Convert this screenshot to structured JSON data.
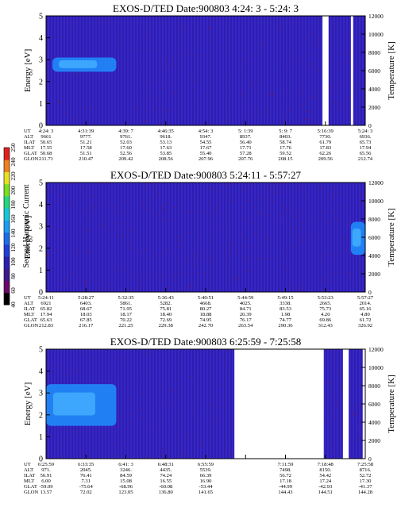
{
  "colors": {
    "background": "#3322bb",
    "stripe_a": "#3a2ad0",
    "stripe_b": "#2a1aa6",
    "noise": "#7a1a48",
    "bright_band": "#1e90ff",
    "gap": "#ffffff"
  },
  "colorbar": {
    "label": "Second Harmonic Current",
    "ticks": [
      "40",
      "60",
      "80",
      "100",
      "120",
      "140",
      "160",
      "180",
      "200",
      "220",
      "240",
      "250"
    ],
    "colors": [
      "#000000",
      "#6a0a6a",
      "#3c1a8c",
      "#2a1fb0",
      "#1f3fd8",
      "#1e6ee8",
      "#1e9ef0",
      "#14c8d8",
      "#22d880",
      "#7ae020",
      "#e8e020",
      "#f08020",
      "#e02020"
    ]
  },
  "chart_data": [
    {
      "type": "heatmap",
      "title": "EXOS-D/TED   Date:900803  4:24: 3 - 5:24: 3",
      "ylabel": "Energy [eV]",
      "ylabel_right": "Temperature [K]",
      "ylim": [
        0,
        5
      ],
      "yticks": [
        "0",
        "1",
        "2",
        "3",
        "4",
        "5"
      ],
      "y2lim": [
        0,
        12000
      ],
      "y2ticks": [
        "0",
        "2000",
        "4000",
        "6000",
        "8000",
        "10000",
        "12000"
      ],
      "x_labels": [
        "4:24: 3",
        "4:31:39",
        "4:39: 7",
        "4:46:35",
        "4:54: 3",
        "5: 1:39",
        "5: 9: 7",
        "5:16:39",
        "5:24: 3"
      ],
      "row_names": [
        "UT",
        "ALT",
        "ILAT",
        "MLT",
        "GLAT",
        "GLON"
      ],
      "rows": [
        [
          "",
          "9661",
          "9777.",
          "9761.",
          "9618.",
          "9347.",
          "8937.",
          "8403.",
          "7730.",
          "6936."
        ],
        [
          "",
          "50.65",
          "51.21",
          "52.03",
          "53.13",
          "54.55",
          "56.40",
          "58.74",
          "61.79",
          "65.73"
        ],
        [
          "",
          "17.55",
          "17.58",
          "17.60",
          "17.63",
          "17.67",
          "17.71",
          "17.76",
          "17.83",
          "17.94"
        ],
        [
          "",
          "50.68",
          "51.51",
          "52.56",
          "53.85",
          "55.40",
          "57.28",
          "59.52",
          "62.26",
          "65.56"
        ],
        [
          "",
          "211.71",
          "210.47",
          "209.42",
          "208.56",
          "207.96",
          "207.76",
          "208.15",
          "209.56",
          "212.74"
        ]
      ],
      "gaps": [
        [
          0.866,
          0.885
        ],
        [
          0.955,
          0.962
        ]
      ],
      "bright_band": {
        "t_start": 0.02,
        "t_end": 0.22,
        "e_low": 2.45,
        "e_high": 3.1
      }
    },
    {
      "type": "heatmap",
      "title": "EXOS-D/TED   Date:900803  5:24:11 - 5:57:27",
      "ylabel": "Energy [eV]",
      "ylabel_right": "Temperature [K]",
      "ylim": [
        0,
        5
      ],
      "yticks": [
        "0",
        "1",
        "2",
        "3",
        "4",
        "5"
      ],
      "y2lim": [
        0,
        12000
      ],
      "y2ticks": [
        "0",
        "2000",
        "4000",
        "6000",
        "8000",
        "10000",
        "12000"
      ],
      "x_labels": [
        "5:24:11",
        "5:28:27",
        "5:32:35",
        "5:36:43",
        "5:40:51",
        "5:44:59",
        "5:49:15",
        "5:53:23",
        "5:57:27"
      ],
      "rows": [
        [
          "",
          "6921",
          "6403.",
          "5861.",
          "5282.",
          "4668.",
          "4025.",
          "3338.",
          "2665.",
          "2014."
        ],
        [
          "",
          "65.82",
          "68.67",
          "71.95",
          "75.81",
          "80.27",
          "84.71",
          "83.53",
          "75.73",
          "65.16"
        ],
        [
          "",
          "17.94",
          "18.03",
          "18.17",
          "18.40",
          "18.88",
          "20.39",
          "1.98",
          "4.20",
          "4.80"
        ],
        [
          "",
          "65.63",
          "67.85",
          "70.22",
          "72.69",
          "74.95",
          "76.17",
          "74.77",
          "69.86",
          "61.72"
        ],
        [
          "",
          "212.83",
          "216.17",
          "221.25",
          "229.38",
          "242.70",
          "263.54",
          "290.36",
          "312.43",
          "326.92"
        ]
      ],
      "gaps": [],
      "bright_band": {
        "t_start": 0.955,
        "t_end": 1.0,
        "e_low": 1.7,
        "e_high": 3.2
      }
    },
    {
      "type": "heatmap",
      "title": "EXOS-D/TED   Date:900803  6:25:59 - 7:25:58",
      "ylabel": "Energy [eV]",
      "ylabel_right": "Temperature [K]",
      "ylim": [
        0,
        5
      ],
      "yticks": [
        "0",
        "1",
        "2",
        "3",
        "4",
        "5"
      ],
      "y2lim": [
        0,
        12000
      ],
      "y2ticks": [
        "0",
        "2000",
        "4000",
        "6000",
        "8000",
        "10000",
        "12000"
      ],
      "x_labels": [
        "6:25:59",
        "6:33:35",
        "6:41: 3",
        "6:48:31",
        "6:55:59",
        "",
        "7:11:59",
        "7:18:48",
        "7:25:58"
      ],
      "rows": [
        [
          "",
          "971.",
          "2045.",
          "3246.",
          "4435.",
          "5539.",
          "",
          "7498.",
          "8150.",
          "8716."
        ],
        [
          "",
          "56.91",
          "76.41",
          "84.59",
          "74.24",
          "66.39",
          "",
          "56.72",
          "54.42",
          "52.72"
        ],
        [
          "",
          "6.00",
          "7.31",
          "15.08",
          "16.55",
          "16.90",
          "",
          "17.18",
          "17.24",
          "17.30"
        ],
        [
          "",
          "-59.09",
          "-75.64",
          "-68.96",
          "-60.08",
          "-53.44",
          "",
          "-44.99",
          "-42.93",
          "-41.37"
        ],
        [
          "",
          "13.57",
          "72.02",
          "123.05",
          "136.80",
          "141.65",
          "",
          "144.43",
          "144.51",
          "144.28"
        ]
      ],
      "gaps": [
        [
          0.59,
          0.87
        ],
        [
          0.93,
          0.948
        ],
        [
          0.992,
          1.0
        ]
      ],
      "bright_band": {
        "t_start": 0.0,
        "t_end": 0.22,
        "e_low": 1.5,
        "e_high": 3.4
      }
    }
  ]
}
